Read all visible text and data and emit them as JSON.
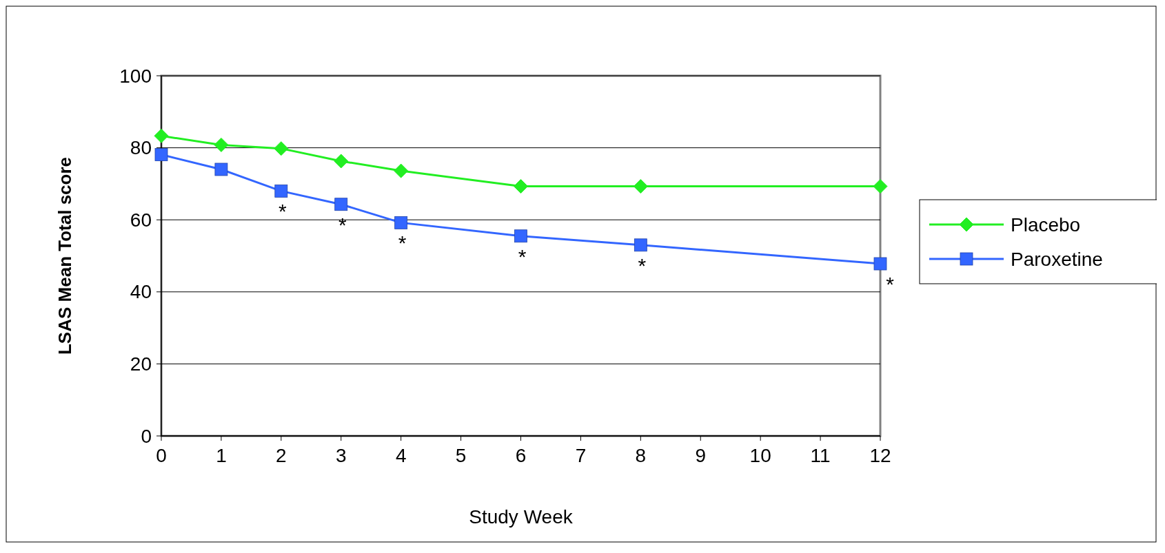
{
  "chart_data": {
    "type": "line",
    "xlabel": "Study Week",
    "ylabel": "LSAS Mean Total score",
    "x": [
      0,
      1,
      2,
      3,
      4,
      6,
      8,
      12
    ],
    "series": [
      {
        "name": "Placebo",
        "color": "#22ee22",
        "marker": "diamond",
        "values": [
          83.3,
          80.8,
          79.8,
          76.3,
          73.6,
          69.3,
          69.3,
          69.3
        ]
      },
      {
        "name": "Paroxetine",
        "color": "#3366ff",
        "marker": "square",
        "values": [
          78.1,
          74.0,
          68.0,
          64.3,
          59.2,
          55.5,
          53.0,
          47.8
        ]
      }
    ],
    "xlim": [
      0,
      12
    ],
    "xticks": [
      0,
      1,
      2,
      3,
      4,
      5,
      6,
      7,
      8,
      9,
      10,
      11,
      12
    ],
    "ylim": [
      0,
      100
    ],
    "yticks": [
      0,
      20,
      40,
      60,
      80,
      100
    ],
    "grid": "y",
    "legend": "right",
    "line_style": "solid",
    "annotations": [
      {
        "text": "*",
        "x": 2,
        "y": 68.0
      },
      {
        "text": "*",
        "x": 3,
        "y": 64.3
      },
      {
        "text": "*",
        "x": 4,
        "y": 59.2
      },
      {
        "text": "*",
        "x": 6,
        "y": 55.5
      },
      {
        "text": "*",
        "x": 8,
        "y": 53.0
      },
      {
        "text": "*",
        "x": 12,
        "y": 47.8
      }
    ]
  }
}
